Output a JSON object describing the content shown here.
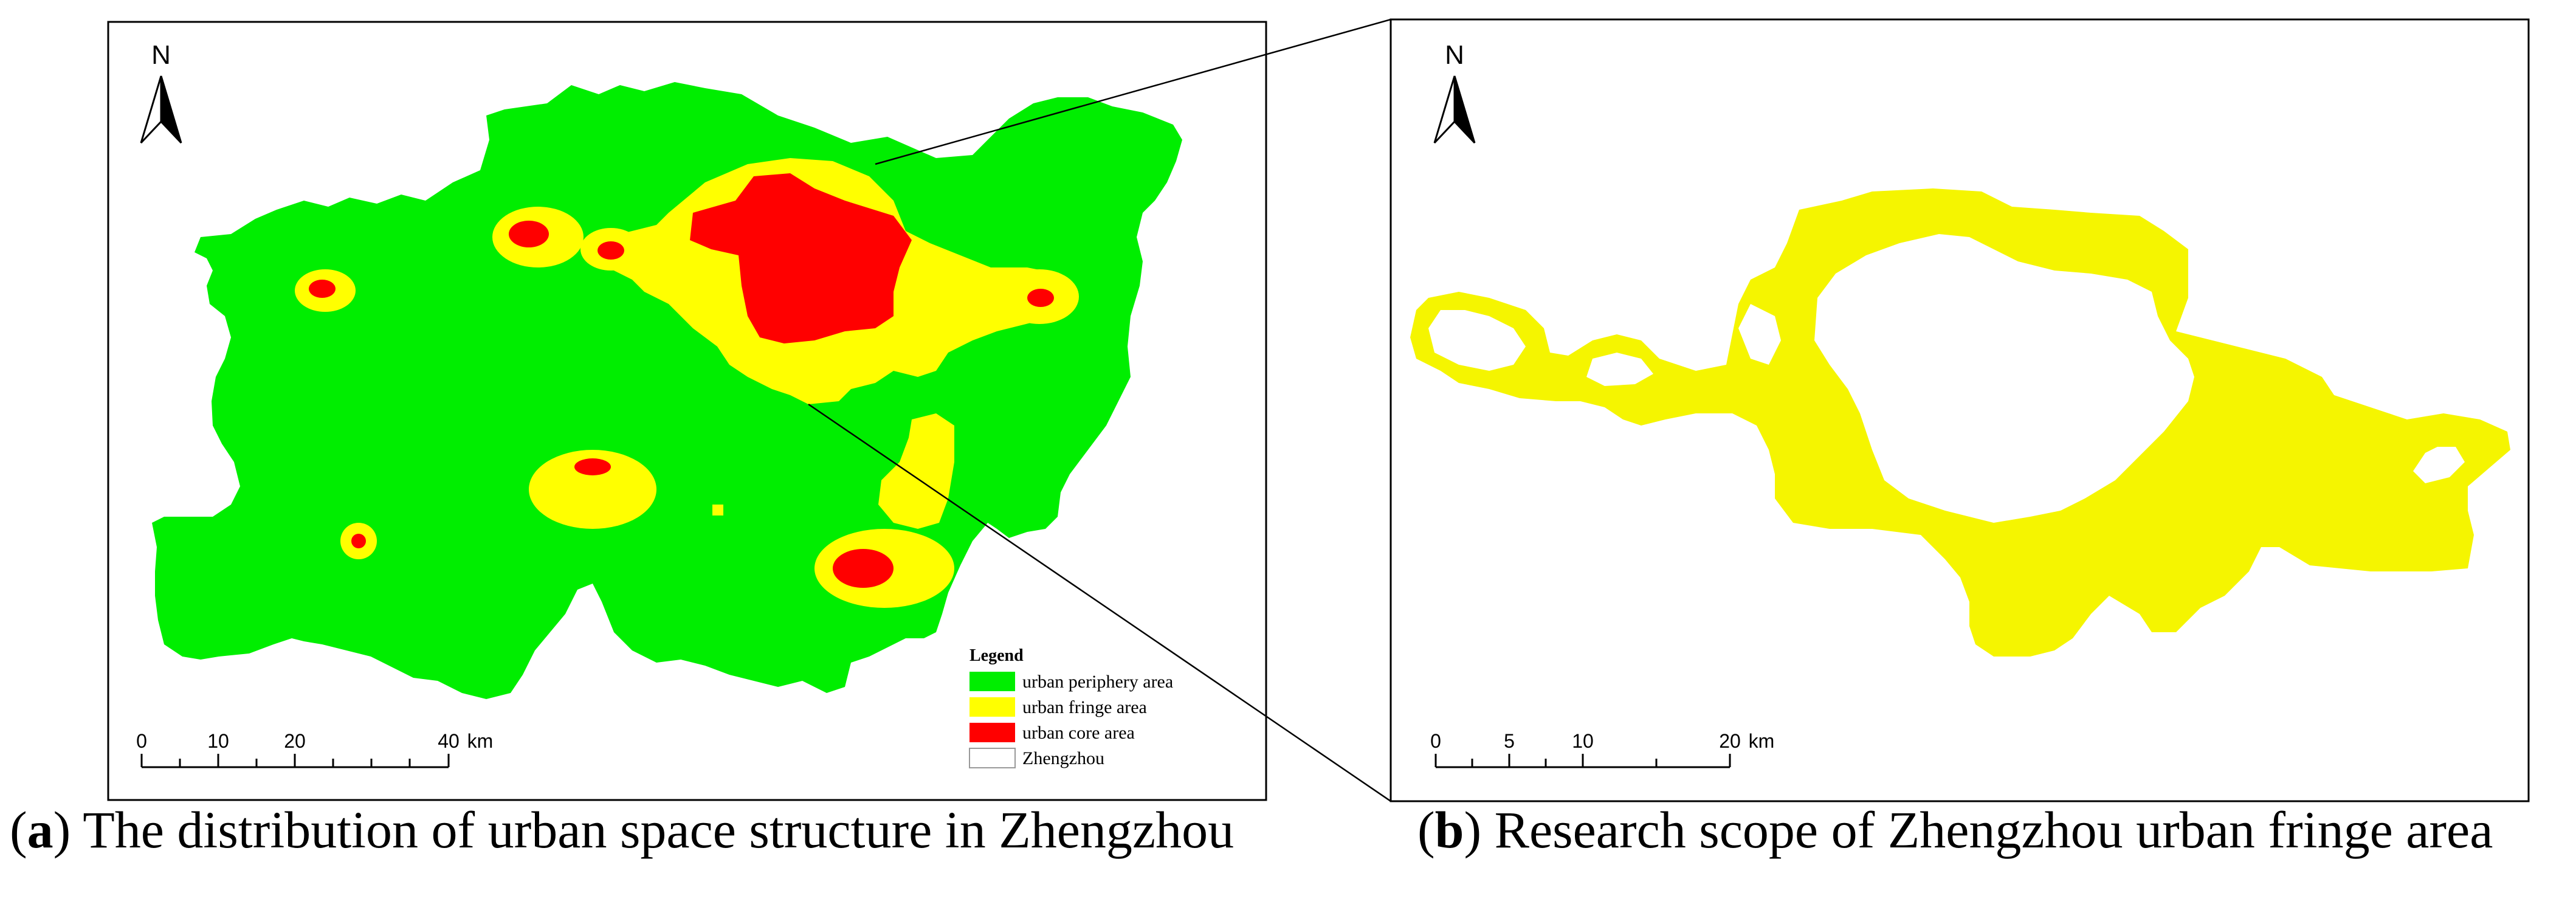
{
  "panel_a": {
    "north_label": "N",
    "legend": {
      "title": "Legend",
      "items": [
        {
          "label": "urban periphery area",
          "color": "#00ee00"
        },
        {
          "label": "urban fringe area",
          "color": "#ffff00"
        },
        {
          "label": "urban core area",
          "color": "#ff0000"
        },
        {
          "label": "Zhengzhou",
          "color": "#ffffff"
        }
      ]
    },
    "scale": {
      "ticks": [
        "0",
        "10",
        "20",
        "40"
      ],
      "unit": "km"
    },
    "caption": {
      "letter": "a",
      "text": " The distribution of urban space structure in Zhengzhou"
    }
  },
  "panel_b": {
    "north_label": "N",
    "fill_color": "#f5f500",
    "scale": {
      "ticks": [
        "0",
        "5",
        "10",
        "20"
      ],
      "unit": "km"
    },
    "caption": {
      "letter": "b",
      "text": " Research scope of Zhengzhou urban fringe area"
    }
  },
  "colors": {
    "periphery": "#00ee00",
    "fringe": "#ffff00",
    "core": "#ff0000",
    "frame": "#000000"
  }
}
